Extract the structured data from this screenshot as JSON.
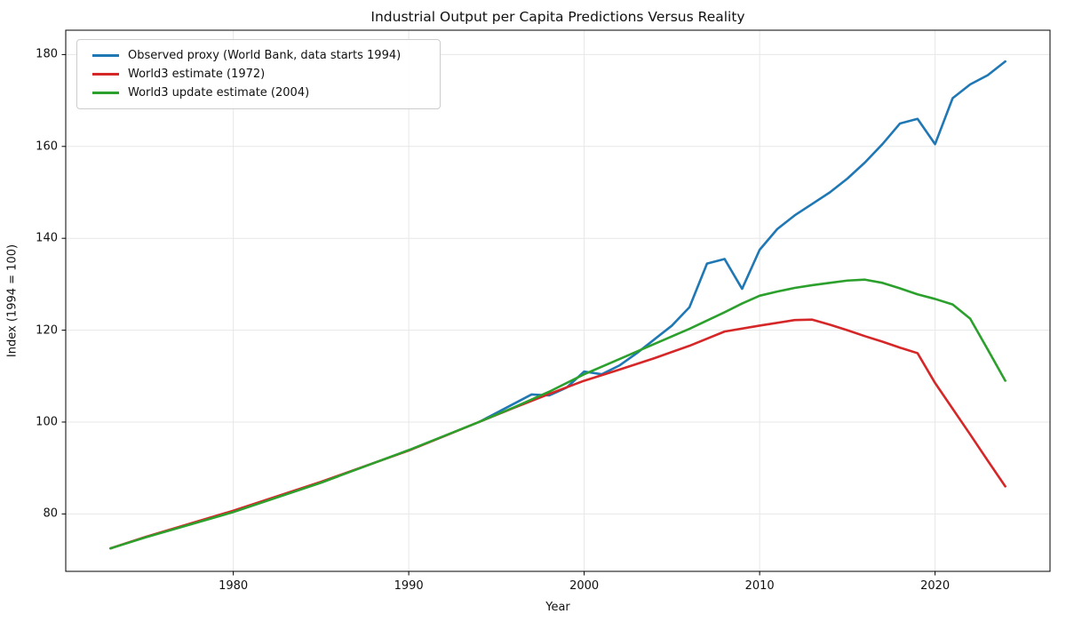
{
  "title": "Industrial Output per Capita Predictions Versus Reality",
  "axes": {
    "x_label": "Year",
    "y_label": "Index (1994 = 100)",
    "x_ticks": [
      "1980",
      "1990",
      "2000",
      "2010",
      "2020"
    ],
    "y_ticks": [
      "80",
      "100",
      "120",
      "140",
      "160",
      "180"
    ]
  },
  "colors": {
    "observed": "#1f77b4",
    "world3_1972": "#d62728",
    "world3_2004": "#2ca02c",
    "grid": "#e7e7e7",
    "spine": "#000000",
    "text": "#111111",
    "legend_border": "#cccccc"
  },
  "legend": {
    "position": "upper left",
    "entries": [
      {
        "label": "Observed proxy (World Bank, data starts 1994)",
        "color": "#1f77b4"
      },
      {
        "label": "World3 estimate (1972)",
        "color": "#d62728"
      },
      {
        "label": "World3 update estimate (2004)",
        "color": "#2ca02c"
      }
    ]
  },
  "chart_data": {
    "type": "line",
    "title": "Industrial Output per Capita Predictions Versus Reality",
    "xlabel": "Year",
    "ylabel": "Index (1994 = 100)",
    "xlim": [
      1970.45,
      2026.55
    ],
    "ylim": [
      67.5,
      185.3
    ],
    "x_tick_values": [
      1980,
      1990,
      2000,
      2010,
      2020
    ],
    "y_tick_values": [
      80,
      100,
      120,
      140,
      160,
      180
    ],
    "grid": true,
    "legend_position": "upper left",
    "series": [
      {
        "name": "Observed proxy (World Bank, data starts 1994)",
        "color": "#1f77b4",
        "x": [
          1994,
          1995,
          1996,
          1997,
          1998,
          1999,
          2000,
          2001,
          2002,
          2003,
          2004,
          2005,
          2006,
          2007,
          2008,
          2009,
          2010,
          2011,
          2012,
          2013,
          2014,
          2015,
          2016,
          2017,
          2018,
          2019,
          2020,
          2021,
          2022,
          2023,
          2024
        ],
        "y": [
          100,
          102,
          104,
          106,
          105.8,
          107.5,
          111,
          110.4,
          112.3,
          115,
          118,
          121,
          125,
          134.5,
          135.5,
          129,
          137.5,
          142,
          145,
          147.5,
          150,
          153,
          156.5,
          160.5,
          165,
          166,
          160.5,
          170.5,
          173.5,
          175.5,
          178.5
        ]
      },
      {
        "name": "World3 estimate (1972)",
        "color": "#d62728",
        "x": [
          1973,
          1975,
          1980,
          1985,
          1990,
          1994,
          1996,
          1998,
          2000,
          2002,
          2004,
          2006,
          2008,
          2010,
          2012,
          2013,
          2014,
          2015,
          2016,
          2017,
          2018,
          2019,
          2020,
          2021,
          2022,
          2023,
          2024
        ],
        "y": [
          72.5,
          75,
          80.7,
          87,
          93.8,
          100,
          103.1,
          106.1,
          109,
          111.4,
          113.9,
          116.6,
          119.7,
          121,
          122.2,
          122.3,
          121.2,
          120,
          118.7,
          117.5,
          116.2,
          115,
          108.5,
          102.9,
          97.3,
          91.6,
          86
        ]
      },
      {
        "name": "World3 update estimate (2004)",
        "color": "#2ca02c",
        "x": [
          1973,
          1975,
          1980,
          1985,
          1990,
          1994,
          1996,
          1998,
          2000,
          2002,
          2004,
          2006,
          2008,
          2009,
          2010,
          2011,
          2012,
          2013,
          2014,
          2015,
          2016,
          2017,
          2018,
          2019,
          2020,
          2021,
          2022,
          2023,
          2024
        ],
        "y": [
          72.5,
          74.9,
          80.4,
          86.8,
          93.9,
          100,
          103.2,
          106.6,
          110.4,
          113.7,
          117,
          120.3,
          123.9,
          125.8,
          127.5,
          128.4,
          129.2,
          129.8,
          130.3,
          130.8,
          131,
          130.3,
          129.1,
          127.8,
          126.8,
          125.6,
          122.5,
          115.8,
          109
        ]
      }
    ]
  }
}
